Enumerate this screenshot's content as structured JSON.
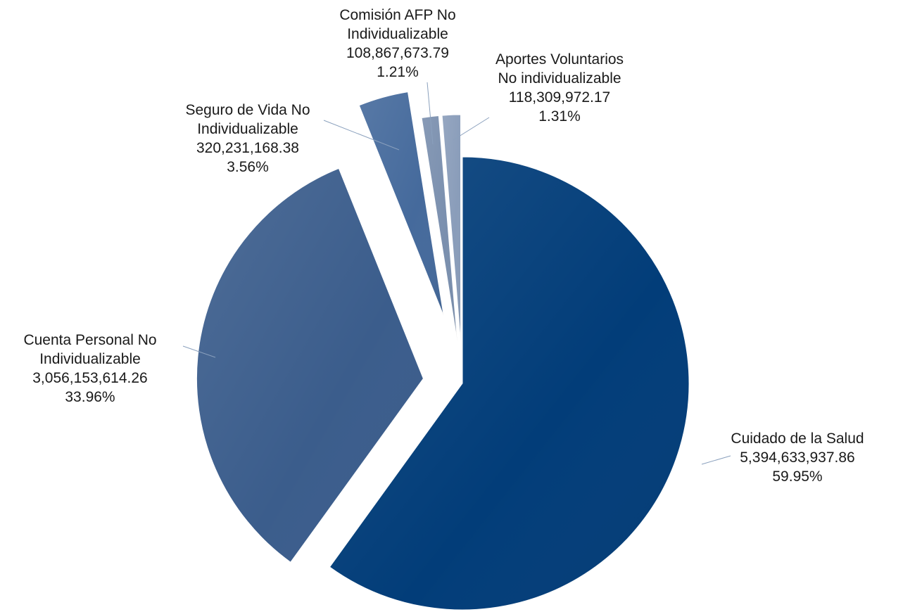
{
  "chart_data": {
    "type": "pie",
    "title": "",
    "slices": [
      {
        "label_lines": [
          "Cuidado de la Salud"
        ],
        "value": 5394633937.86,
        "value_text": "5,394,633,937.86",
        "percent": 59.95,
        "percent_text": "59.95%",
        "color": "#023d79"
      },
      {
        "label_lines": [
          "Cuenta Personal No",
          "Individualizable"
        ],
        "value": 3056153614.26,
        "value_text": "3,056,153,614.26",
        "percent": 33.96,
        "percent_text": "33.96%",
        "color": "#3b5d8c"
      },
      {
        "label_lines": [
          "Seguro de Vida No",
          "Individualizable"
        ],
        "value": 320231168.38,
        "value_text": "320,231,168.38",
        "percent": 3.56,
        "percent_text": "3.56%",
        "color": "#456a9c"
      },
      {
        "label_lines": [
          "Comisión AFP No",
          "Individualizable"
        ],
        "value": 108867673.79,
        "value_text": "108,867,673.79",
        "percent": 1.21,
        "percent_text": "1.21%",
        "color": "#7a8fae"
      },
      {
        "label_lines": [
          "Aportes Voluntarios",
          "No individualizable"
        ],
        "value": 118309972.17,
        "value_text": "118,309,972.17",
        "percent": 1.31,
        "percent_text": "1.31%",
        "color": "#8a9dba"
      }
    ]
  }
}
